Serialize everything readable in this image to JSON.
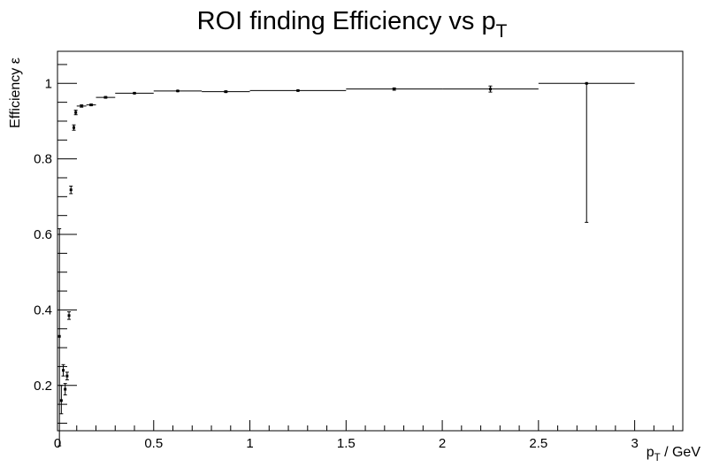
{
  "chart_data": {
    "type": "scatter",
    "title_main": "ROI finding Efficiency vs p",
    "title_sub": "T",
    "xlabel_main": "p",
    "xlabel_sub": "T",
    "xlabel_rest": " / GeV",
    "ylabel": "Efficiency ε",
    "xlim": [
      0,
      3.25
    ],
    "ylim": [
      0.08,
      1.085
    ],
    "x_ticks": [
      0,
      0.5,
      1,
      1.5,
      2,
      2.5,
      3
    ],
    "x_tick_labels": [
      "0",
      "0.5",
      "1",
      "1.5",
      "2",
      "2.5",
      "3"
    ],
    "y_ticks": [
      0.2,
      0.4,
      0.6,
      0.8,
      1.0
    ],
    "y_tick_labels": [
      "0.2",
      "0.4",
      "0.6",
      "0.8",
      "1"
    ],
    "grid": false,
    "series": [
      {
        "points": [
          {
            "x": 0.01,
            "y": 0.33,
            "xerr": 0.0,
            "ylo": 0.04,
            "yhi": 0.615
          },
          {
            "x": 0.02,
            "y": 0.16,
            "xerr": 0.0,
            "ylo": 0.125,
            "yhi": 0.2
          },
          {
            "x": 0.03,
            "y": 0.24,
            "xerr": 0.0,
            "ylo": 0.225,
            "yhi": 0.255
          },
          {
            "x": 0.04,
            "y": 0.19,
            "xerr": 0.0,
            "ylo": 0.175,
            "yhi": 0.205
          },
          {
            "x": 0.05,
            "y": 0.225,
            "xerr": 0.0,
            "ylo": 0.215,
            "yhi": 0.235
          },
          {
            "x": 0.06,
            "y": 0.385,
            "xerr": 0.0,
            "ylo": 0.375,
            "yhi": 0.395
          },
          {
            "x": 0.07,
            "y": 0.718,
            "xerr": 0.0,
            "ylo": 0.708,
            "yhi": 0.728
          },
          {
            "x": 0.085,
            "y": 0.883,
            "xerr": 0.0,
            "ylo": 0.876,
            "yhi": 0.89
          },
          {
            "x": 0.095,
            "y": 0.923,
            "xerr": 0.0,
            "ylo": 0.917,
            "yhi": 0.929
          },
          {
            "x": 0.125,
            "y": 0.94,
            "xerr": 0.025,
            "ylo": 0.937,
            "yhi": 0.943
          },
          {
            "x": 0.175,
            "y": 0.943,
            "xerr": 0.025,
            "ylo": 0.941,
            "yhi": 0.945
          },
          {
            "x": 0.25,
            "y": 0.963,
            "xerr": 0.05,
            "ylo": 0.961,
            "yhi": 0.965
          },
          {
            "x": 0.4,
            "y": 0.974,
            "xerr": 0.1,
            "ylo": 0.973,
            "yhi": 0.975
          },
          {
            "x": 0.625,
            "y": 0.98,
            "xerr": 0.125,
            "ylo": 0.979,
            "yhi": 0.981
          },
          {
            "x": 0.875,
            "y": 0.978,
            "xerr": 0.125,
            "ylo": 0.976,
            "yhi": 0.98
          },
          {
            "x": 1.25,
            "y": 0.981,
            "xerr": 0.25,
            "ylo": 0.98,
            "yhi": 0.982
          },
          {
            "x": 1.75,
            "y": 0.985,
            "xerr": 0.25,
            "ylo": 0.982,
            "yhi": 0.988
          },
          {
            "x": 2.25,
            "y": 0.985,
            "xerr": 0.25,
            "ylo": 0.977,
            "yhi": 0.993
          },
          {
            "x": 2.75,
            "y": 1.0,
            "xerr": 0.25,
            "ylo": 0.632,
            "yhi": 1.0
          }
        ]
      }
    ]
  }
}
